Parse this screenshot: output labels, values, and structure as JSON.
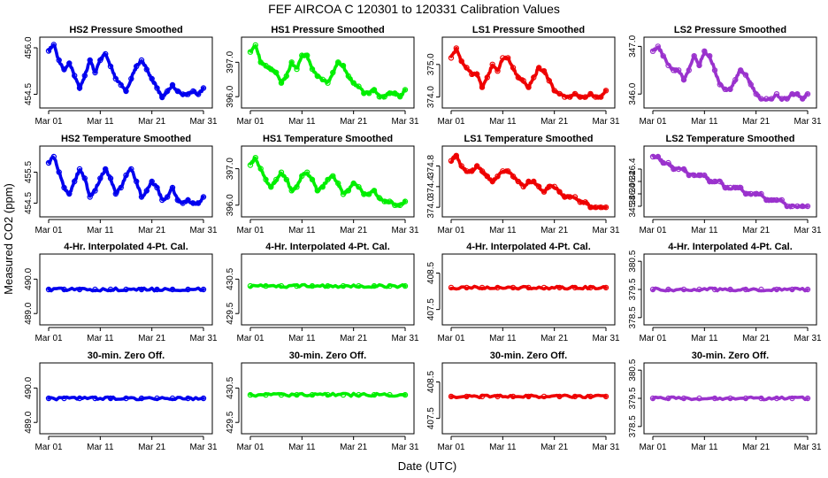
{
  "main_title": "FEF   AIRCOA C   120301 to 120331   Calibration Values",
  "xlabel": "Date (UTC)",
  "ylabel": "Measured CO2 (ppm)",
  "x_tick_labels": [
    "Mar 01",
    "Mar 11",
    "Mar 21",
    "Mar 31"
  ],
  "colors": {
    "HS2": "#0000ee",
    "HS1": "#00ee00",
    "LS1": "#ee0000",
    "LS2": "#9a32cd"
  },
  "chart_data": [
    {
      "type": "line",
      "title": "HS2 Pressure Smoothed",
      "series": "HS2",
      "xlim": [
        1,
        31
      ],
      "ylim": [
        454.2,
        456.2
      ],
      "yticks": [
        "454.5",
        "456.0"
      ],
      "ytick_values": [
        454.5,
        456.0
      ],
      "x": [
        1,
        2,
        3,
        4,
        5,
        6,
        7,
        8,
        9,
        10,
        11,
        12,
        13,
        14,
        15,
        16,
        17,
        18,
        19,
        20,
        21,
        22,
        23,
        24,
        25,
        26,
        27,
        28,
        29,
        30,
        31
      ],
      "values": [
        455.9,
        456.1,
        455.6,
        455.3,
        455.5,
        455.1,
        454.7,
        455.1,
        455.6,
        455.2,
        455.6,
        455.8,
        455.4,
        455.0,
        454.8,
        454.6,
        455.0,
        455.4,
        455.6,
        455.3,
        455.0,
        454.7,
        454.4,
        454.6,
        454.8,
        454.6,
        454.5,
        454.5,
        454.6,
        454.5,
        454.7
      ]
    },
    {
      "type": "line",
      "title": "HS1 Pressure Smoothed",
      "series": "HS1",
      "xlim": [
        1,
        31
      ],
      "ylim": [
        395.8,
        397.6
      ],
      "yticks": [
        "396.0",
        "397.0"
      ],
      "ytick_values": [
        396.0,
        397.0
      ],
      "x": [
        1,
        2,
        3,
        4,
        5,
        6,
        7,
        8,
        9,
        10,
        11,
        12,
        13,
        14,
        15,
        16,
        17,
        18,
        19,
        20,
        21,
        22,
        23,
        24,
        25,
        26,
        27,
        28,
        29,
        30,
        31
      ],
      "values": [
        397.3,
        397.5,
        397.0,
        396.9,
        396.8,
        396.7,
        396.4,
        396.6,
        397.0,
        396.8,
        397.2,
        397.2,
        396.8,
        396.6,
        396.5,
        396.4,
        396.7,
        397.0,
        396.9,
        396.6,
        396.4,
        396.3,
        396.1,
        396.1,
        396.2,
        396.0,
        396.0,
        396.1,
        396.1,
        396.0,
        396.2
      ]
    },
    {
      "type": "line",
      "title": "LS1 Pressure Smoothed",
      "series": "LS1",
      "xlim": [
        1,
        31
      ],
      "ylim": [
        373.8,
        375.7
      ],
      "yticks": [
        "374.0",
        "375.0"
      ],
      "ytick_values": [
        374.0,
        375.0
      ],
      "x": [
        1,
        2,
        3,
        4,
        5,
        6,
        7,
        8,
        9,
        10,
        11,
        12,
        13,
        14,
        15,
        16,
        17,
        18,
        19,
        20,
        21,
        22,
        23,
        24,
        25,
        26,
        27,
        28,
        29,
        30,
        31
      ],
      "values": [
        375.2,
        375.5,
        375.1,
        374.9,
        374.7,
        374.7,
        374.3,
        374.6,
        375.0,
        374.8,
        375.2,
        375.2,
        374.9,
        374.6,
        374.5,
        374.3,
        374.6,
        374.9,
        374.8,
        374.5,
        374.2,
        374.1,
        374.0,
        374.0,
        374.1,
        374.0,
        374.0,
        374.1,
        374.0,
        374.0,
        374.2
      ]
    },
    {
      "type": "line",
      "title": "LS2 Pressure Smoothed",
      "series": "LS2",
      "xlim": [
        1,
        31
      ],
      "ylim": [
        345.8,
        347.1
      ],
      "yticks": [
        "346.0",
        "347.0"
      ],
      "ytick_values": [
        346.0,
        347.0
      ],
      "x": [
        1,
        2,
        3,
        4,
        5,
        6,
        7,
        8,
        9,
        10,
        11,
        12,
        13,
        14,
        15,
        16,
        17,
        18,
        19,
        20,
        21,
        22,
        23,
        24,
        25,
        26,
        27,
        28,
        29,
        30,
        31
      ],
      "values": [
        346.9,
        347.0,
        346.8,
        346.6,
        346.5,
        346.5,
        346.3,
        346.5,
        346.8,
        346.6,
        346.9,
        346.8,
        346.5,
        346.2,
        346.1,
        346.1,
        346.3,
        346.5,
        346.4,
        346.2,
        346.0,
        345.9,
        345.9,
        345.9,
        346.0,
        345.9,
        345.9,
        346.0,
        346.0,
        345.9,
        346.0
      ]
    },
    {
      "type": "line",
      "title": "HS2 Temperature Smoothed",
      "series": "HS2",
      "xlim": [
        1,
        31
      ],
      "ylim": [
        454.2,
        456.2
      ],
      "yticks": [
        "454.5",
        "455.5"
      ],
      "ytick_values": [
        454.5,
        455.5
      ],
      "x": [
        1,
        2,
        3,
        4,
        5,
        6,
        7,
        8,
        9,
        10,
        11,
        12,
        13,
        14,
        15,
        16,
        17,
        18,
        19,
        20,
        21,
        22,
        23,
        24,
        25,
        26,
        27,
        28,
        29,
        30,
        31
      ],
      "values": [
        455.8,
        456.0,
        455.5,
        455.0,
        454.8,
        455.2,
        455.6,
        455.3,
        454.7,
        454.9,
        455.3,
        455.6,
        455.3,
        454.8,
        455.0,
        455.4,
        455.6,
        455.2,
        454.7,
        454.9,
        455.2,
        455.0,
        454.6,
        454.7,
        455.0,
        454.6,
        454.5,
        454.6,
        454.5,
        454.5,
        454.7
      ]
    },
    {
      "type": "line",
      "title": "HS1 Temperature Smoothed",
      "series": "HS1",
      "xlim": [
        1,
        31
      ],
      "ylim": [
        395.8,
        397.5
      ],
      "yticks": [
        "396.0",
        "397.0"
      ],
      "ytick_values": [
        396.0,
        397.0
      ],
      "x": [
        1,
        2,
        3,
        4,
        5,
        6,
        7,
        8,
        9,
        10,
        11,
        12,
        13,
        14,
        15,
        16,
        17,
        18,
        19,
        20,
        21,
        22,
        23,
        24,
        25,
        26,
        27,
        28,
        29,
        30,
        31
      ],
      "values": [
        397.1,
        397.3,
        397.0,
        396.7,
        396.5,
        396.7,
        396.9,
        396.7,
        396.4,
        396.5,
        396.8,
        396.9,
        396.7,
        396.4,
        396.5,
        396.7,
        396.8,
        396.6,
        396.3,
        396.4,
        396.6,
        396.5,
        396.3,
        396.3,
        396.4,
        396.2,
        396.1,
        396.1,
        396.0,
        396.0,
        396.1
      ]
    },
    {
      "type": "line",
      "title": "LS1 Temperature Smoothed",
      "series": "LS1",
      "xlim": [
        1,
        31
      ],
      "ylim": [
        373.9,
        375.1
      ],
      "yticks": [
        "374.0",
        "374.4",
        "374.8"
      ],
      "ytick_values": [
        374.0,
        374.4,
        374.8
      ],
      "x": [
        1,
        2,
        3,
        4,
        5,
        6,
        7,
        8,
        9,
        10,
        11,
        12,
        13,
        14,
        15,
        16,
        17,
        18,
        19,
        20,
        21,
        22,
        23,
        24,
        25,
        26,
        27,
        28,
        29,
        30,
        31
      ],
      "values": [
        374.9,
        375.0,
        374.8,
        374.7,
        374.7,
        374.8,
        374.7,
        374.6,
        374.5,
        374.6,
        374.7,
        374.7,
        374.6,
        374.5,
        374.4,
        374.5,
        374.5,
        374.4,
        374.3,
        374.4,
        374.4,
        374.3,
        374.2,
        374.2,
        374.2,
        374.1,
        374.1,
        374.0,
        374.0,
        374.0,
        374.0
      ]
    },
    {
      "type": "line",
      "title": "LS2 Temperature Smoothed",
      "series": "LS2",
      "xlim": [
        1,
        31
      ],
      "ylim": [
        345.7,
        346.7
      ],
      "yticks": [
        "345.8",
        "346.0",
        "346.2",
        "346.4"
      ],
      "ytick_values": [
        345.8,
        346.0,
        346.2,
        346.4
      ],
      "x": [
        1,
        2,
        3,
        4,
        5,
        6,
        7,
        8,
        9,
        10,
        11,
        12,
        13,
        14,
        15,
        16,
        17,
        18,
        19,
        20,
        21,
        22,
        23,
        24,
        25,
        26,
        27,
        28,
        29,
        30,
        31
      ],
      "values": [
        346.6,
        346.6,
        346.5,
        346.5,
        346.4,
        346.4,
        346.4,
        346.3,
        346.3,
        346.3,
        346.3,
        346.2,
        346.2,
        346.2,
        346.1,
        346.1,
        346.1,
        346.1,
        346.0,
        346.0,
        346.0,
        346.0,
        345.9,
        345.9,
        345.9,
        345.9,
        345.8,
        345.8,
        345.8,
        345.8,
        345.8
      ]
    },
    {
      "type": "line",
      "title": "4-Hr. Interpolated 4-Pt. Cal.",
      "series": "HS2",
      "xlim": [
        1,
        31
      ],
      "ylim": [
        488.8,
        490.6
      ],
      "yticks": [
        "489.0",
        "490.0"
      ],
      "ytick_values": [
        489.0,
        490.0
      ],
      "x": [
        1,
        4,
        7,
        10,
        13,
        16,
        19,
        22,
        25,
        28,
        31
      ],
      "values": [
        489.7,
        489.7,
        489.7,
        489.7,
        489.7,
        489.7,
        489.7,
        489.7,
        489.7,
        489.7,
        489.7
      ]
    },
    {
      "type": "line",
      "title": "4-Hr. Interpolated 4-Pt. Cal.",
      "series": "HS1",
      "xlim": [
        1,
        31
      ],
      "ylim": [
        429.3,
        431.1
      ],
      "yticks": [
        "429.5",
        "430.5"
      ],
      "ytick_values": [
        429.5,
        430.5
      ],
      "x": [
        1,
        4,
        7,
        10,
        13,
        16,
        19,
        22,
        25,
        28,
        31
      ],
      "values": [
        430.3,
        430.3,
        430.3,
        430.3,
        430.3,
        430.3,
        430.3,
        430.3,
        430.3,
        430.3,
        430.3
      ]
    },
    {
      "type": "line",
      "title": "4-Hr. Interpolated 4-Pt. Cal.",
      "series": "LS1",
      "xlim": [
        1,
        31
      ],
      "ylim": [
        407.2,
        408.9
      ],
      "yticks": [
        "407.5",
        "408.5"
      ],
      "ytick_values": [
        407.5,
        408.5
      ],
      "x": [
        1,
        4,
        7,
        10,
        13,
        16,
        19,
        22,
        25,
        28,
        31
      ],
      "values": [
        408.1,
        408.1,
        408.1,
        408.1,
        408.1,
        408.1,
        408.1,
        408.1,
        408.1,
        408.1,
        408.1
      ]
    },
    {
      "type": "line",
      "title": "4-Hr. Interpolated 4-Pt. Cal.",
      "series": "LS2",
      "xlim": [
        1,
        31
      ],
      "ylim": [
        378.4,
        380.6
      ],
      "yticks": [
        "378.5",
        "379.5",
        "380.5"
      ],
      "ytick_values": [
        378.5,
        379.5,
        380.5
      ],
      "x": [
        1,
        4,
        7,
        10,
        13,
        16,
        19,
        22,
        25,
        28,
        31
      ],
      "values": [
        379.5,
        379.5,
        379.5,
        379.5,
        379.5,
        379.5,
        379.5,
        379.5,
        379.5,
        379.5,
        379.5
      ]
    },
    {
      "type": "line",
      "title": "30-min. Zero Off.",
      "series": "HS2",
      "xlim": [
        1,
        31
      ],
      "ylim": [
        488.8,
        490.6
      ],
      "yticks": [
        "489.0",
        "490.0"
      ],
      "ytick_values": [
        489.0,
        490.0
      ],
      "x": [
        1,
        4,
        7,
        10,
        13,
        16,
        19,
        22,
        25,
        28,
        31
      ],
      "values": [
        489.7,
        489.7,
        489.7,
        489.7,
        489.7,
        489.7,
        489.7,
        489.7,
        489.7,
        489.7,
        489.7
      ]
    },
    {
      "type": "line",
      "title": "30-min. Zero Off.",
      "series": "HS1",
      "xlim": [
        1,
        31
      ],
      "ylim": [
        429.3,
        431.1
      ],
      "yticks": [
        "429.5",
        "430.5"
      ],
      "ytick_values": [
        429.5,
        430.5
      ],
      "x": [
        1,
        4,
        7,
        10,
        13,
        16,
        19,
        22,
        25,
        28,
        31
      ],
      "values": [
        430.3,
        430.3,
        430.3,
        430.3,
        430.3,
        430.3,
        430.3,
        430.3,
        430.3,
        430.3,
        430.3
      ]
    },
    {
      "type": "line",
      "title": "30-min. Zero Off.",
      "series": "LS1",
      "xlim": [
        1,
        31
      ],
      "ylim": [
        407.2,
        408.9
      ],
      "yticks": [
        "407.5",
        "408.5"
      ],
      "ytick_values": [
        407.5,
        408.5
      ],
      "x": [
        1,
        4,
        7,
        10,
        13,
        16,
        19,
        22,
        25,
        28,
        31
      ],
      "values": [
        408.1,
        408.1,
        408.1,
        408.1,
        408.1,
        408.1,
        408.1,
        408.1,
        408.1,
        408.1,
        408.1
      ]
    },
    {
      "type": "line",
      "title": "30-min. Zero Off.",
      "series": "LS2",
      "xlim": [
        1,
        31
      ],
      "ylim": [
        378.4,
        380.6
      ],
      "yticks": [
        "378.5",
        "379.5",
        "380.5"
      ],
      "ytick_values": [
        378.5,
        379.5,
        380.5
      ],
      "x": [
        1,
        4,
        7,
        10,
        13,
        16,
        19,
        22,
        25,
        28,
        31
      ],
      "values": [
        379.5,
        379.5,
        379.5,
        379.5,
        379.5,
        379.5,
        379.5,
        379.5,
        379.5,
        379.5,
        379.5
      ]
    }
  ]
}
